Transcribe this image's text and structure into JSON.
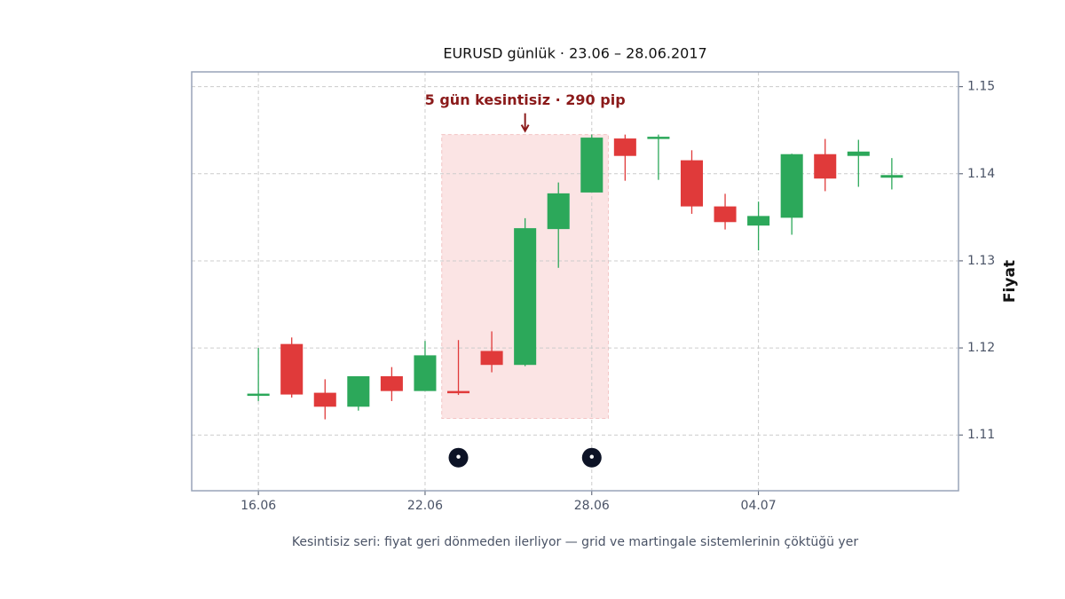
{
  "chart_data": {
    "type": "candlestick",
    "title": "EURUSD günlük · 23.06 – 28.06.2017",
    "caption": "Kesintisiz seri: fiyat geri dönmeden ilerliyor — grid ve martingale sistemlerinin çöktüğü yer",
    "ylabel": "Fiyat",
    "x": [
      0,
      1,
      2,
      3,
      4,
      5,
      6,
      7,
      8,
      9,
      10,
      11,
      12,
      13,
      14,
      15,
      16,
      17,
      18,
      19
    ],
    "open": [
      1.1147,
      1.1204,
      1.1148,
      1.1133,
      1.1167,
      1.1151,
      1.115,
      1.1196,
      1.1181,
      1.1337,
      1.1379,
      1.144,
      1.1441,
      1.1415,
      1.1362,
      1.1341,
      1.135,
      1.1422,
      1.1421,
      1.1396
    ],
    "high": [
      1.12,
      1.1212,
      1.1164,
      1.1167,
      1.1178,
      1.1208,
      1.1209,
      1.1219,
      1.1349,
      1.139,
      1.1445,
      1.1445,
      1.1445,
      1.1427,
      1.1377,
      1.1368,
      1.1423,
      1.144,
      1.1439,
      1.1418
    ],
    "low": [
      1.1139,
      1.1143,
      1.1118,
      1.1128,
      1.1139,
      1.1151,
      1.1146,
      1.1172,
      1.1179,
      1.1292,
      1.1379,
      1.1392,
      1.1393,
      1.1354,
      1.1336,
      1.1312,
      1.133,
      1.138,
      1.1385,
      1.1382
    ],
    "close": [
      1.1147,
      1.1147,
      1.1133,
      1.1167,
      1.1151,
      1.1191,
      1.1149,
      1.1181,
      1.1337,
      1.1377,
      1.1441,
      1.1421,
      1.1442,
      1.1363,
      1.1345,
      1.1351,
      1.1422,
      1.1395,
      1.1425,
      1.1398
    ],
    "up_color": "#2ca85a",
    "down_color": "#e03a3a",
    "xlim": [
      -2,
      21
    ],
    "ylim": [
      1.1036,
      1.1517
    ],
    "xticks": [
      {
        "value": 0,
        "label": "16.06"
      },
      {
        "value": 5,
        "label": "22.06"
      },
      {
        "value": 10,
        "label": "28.06"
      },
      {
        "value": 15,
        "label": "04.07"
      }
    ],
    "yticks": [
      {
        "value": 1.11,
        "label": "1.11"
      },
      {
        "value": 1.12,
        "label": "1.12"
      },
      {
        "value": 1.13,
        "label": "1.13"
      },
      {
        "value": 1.14,
        "label": "1.14"
      },
      1.15
    ],
    "grid": true,
    "highlight": {
      "x0": 5.5,
      "x1": 10.5,
      "y0": 1.1119,
      "y1": 1.1445,
      "color": "#fbe4e4"
    },
    "annotation": {
      "text": "5 gün kesintisiz · 290 pip",
      "x": 8,
      "y": 1.1445,
      "color": "#8b1a1a"
    },
    "markers": {
      "x": [
        6,
        10
      ],
      "y": [
        1.1074,
        1.1074
      ],
      "color": "#0d1326"
    }
  }
}
